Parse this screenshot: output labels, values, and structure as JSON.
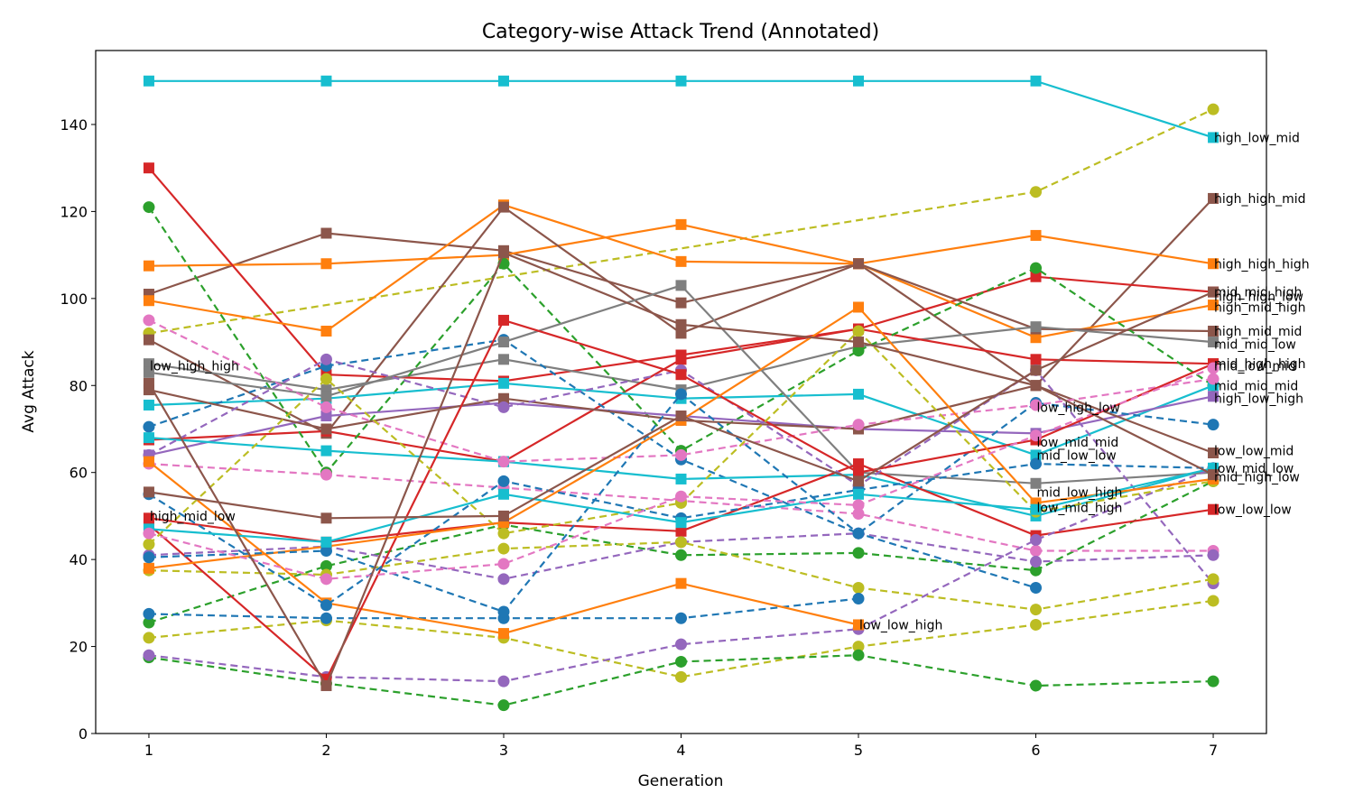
{
  "chart_data": {
    "type": "line",
    "title": "Category-wise Attack Trend (Annotated)",
    "xlabel": "Generation",
    "ylabel": "Avg Attack",
    "x": [
      1,
      2,
      3,
      4,
      5,
      6,
      7
    ],
    "xlim": [
      0.7,
      7.3
    ],
    "ylim": [
      0,
      157
    ],
    "xticks": [
      1,
      2,
      3,
      4,
      5,
      6,
      7
    ],
    "yticks": [
      0,
      20,
      40,
      60,
      80,
      100,
      120,
      140
    ],
    "grid": false,
    "series": [
      {
        "color": "#17becf",
        "marker": "s",
        "dash": false,
        "values": [
          150,
          150,
          150,
          150,
          150,
          150,
          137
        ]
      },
      {
        "color": "#bcbd22",
        "marker": "o",
        "dash": true,
        "values": [
          92,
          null,
          null,
          null,
          null,
          124.5,
          143.5
        ]
      },
      {
        "color": "#8c564b",
        "marker": "s",
        "dash": false,
        "values": [
          101,
          115,
          111,
          99,
          108,
          80,
          123
        ]
      },
      {
        "color": "#ff7f0e",
        "marker": "s",
        "dash": false,
        "values": [
          107.5,
          108,
          110,
          117,
          108,
          114.5,
          108
        ]
      },
      {
        "color": "#d62728",
        "marker": "s",
        "dash": false,
        "values": [
          130,
          82.5,
          81,
          87,
          93,
          105,
          101.5
        ]
      },
      {
        "color": "#ff7f0e",
        "marker": "s",
        "dash": false,
        "values": [
          99.5,
          92.5,
          121.5,
          108.5,
          108,
          91,
          98.5
        ]
      },
      {
        "color": "#8c564b",
        "marker": "s",
        "dash": false,
        "values": [
          90.5,
          69,
          121,
          92,
          108,
          93,
          92.5
        ]
      },
      {
        "color": "#7f7f7f",
        "marker": "s",
        "dash": false,
        "values": [
          85,
          79,
          86,
          79,
          89,
          93.5,
          90
        ]
      },
      {
        "color": "#d62728",
        "marker": "s",
        "dash": false,
        "values": [
          67.5,
          69.5,
          62.5,
          86,
          93,
          86,
          85
        ]
      },
      {
        "color": "#2ca02c",
        "marker": "o",
        "dash": true,
        "values": [
          121,
          60,
          108,
          65,
          88,
          107,
          80
        ]
      },
      {
        "color": "#17becf",
        "marker": "s",
        "dash": false,
        "values": [
          75.5,
          77,
          80.5,
          77,
          78,
          64,
          80
        ]
      },
      {
        "color": "#9467bd",
        "marker": "s",
        "dash": false,
        "values": [
          64,
          73,
          76,
          73,
          70,
          69,
          77.5
        ]
      },
      {
        "color": "#1f77b4",
        "marker": "o",
        "dash": true,
        "values": [
          70.5,
          84.5,
          90.5,
          63,
          46,
          76,
          71
        ]
      },
      {
        "color": "#8c564b",
        "marker": "s",
        "dash": false,
        "values": [
          79,
          70,
          77,
          72,
          70,
          80,
          64.5
        ]
      },
      {
        "color": "#17becf",
        "marker": "s",
        "dash": false,
        "values": [
          68,
          65,
          62.5,
          58.5,
          59.5,
          50,
          61
        ]
      },
      {
        "color": "#7f7f7f",
        "marker": "s",
        "dash": false,
        "values": [
          83,
          77.5,
          90,
          103,
          60,
          57.5,
          60
        ]
      },
      {
        "color": "#2ca02c",
        "marker": "o",
        "dash": true,
        "values": [
          25.5,
          38.5,
          48,
          41,
          41.5,
          37.5,
          58
        ]
      },
      {
        "color": "#d62728",
        "marker": "s",
        "dash": false,
        "values": [
          49.5,
          44,
          48.5,
          46.5,
          62,
          45.5,
          51.5
        ]
      },
      {
        "color": "#e377c2",
        "marker": "o",
        "dash": true,
        "values": [
          95,
          75,
          62.5,
          64,
          71,
          75.5,
          81.5
        ]
      },
      {
        "color": "#e377c2",
        "marker": "o",
        "dash": true,
        "values": [
          62,
          59.5,
          56.5,
          53.5,
          50.5,
          42,
          42
        ]
      },
      {
        "color": "#9467bd",
        "marker": "o",
        "dash": true,
        "values": [
          41,
          43,
          35.5,
          44,
          46,
          39.5,
          41
        ]
      },
      {
        "color": "#9467bd",
        "marker": "o",
        "dash": true,
        "values": [
          64,
          86,
          75,
          83.5,
          57,
          83.5,
          34.5
        ]
      },
      {
        "color": "#bcbd22",
        "marker": "o",
        "dash": true,
        "values": [
          37.5,
          36.5,
          42.5,
          44,
          33.5,
          28.5,
          35.5
        ]
      },
      {
        "color": "#bcbd22",
        "marker": "o",
        "dash": true,
        "values": [
          22,
          26,
          22,
          13,
          20,
          25,
          30.5
        ]
      },
      {
        "color": "#2ca02c",
        "marker": "o",
        "dash": true,
        "values": [
          17.5,
          11.5,
          6.5,
          16.5,
          18,
          11,
          12
        ]
      },
      {
        "color": "#9467bd",
        "marker": "o",
        "dash": true,
        "values": [
          18,
          13,
          12,
          20.5,
          24,
          44.5,
          61
        ]
      },
      {
        "color": "#1f77b4",
        "marker": "o",
        "dash": true,
        "values": [
          27.5,
          26.5,
          26.5,
          26.5,
          31,
          null,
          null
        ]
      },
      {
        "color": "#ff7f0e",
        "marker": "s",
        "dash": false,
        "values": [
          62.5,
          30,
          23,
          34.5,
          25,
          null,
          null
        ]
      },
      {
        "color": "#d62728",
        "marker": "s",
        "dash": false,
        "values": [
          48,
          12.5,
          95,
          82.5,
          60,
          67.5,
          85
        ]
      },
      {
        "color": "#1f77b4",
        "marker": "o",
        "dash": true,
        "values": [
          55,
          29.5,
          58,
          49.5,
          56,
          62,
          61
        ]
      },
      {
        "color": "#bcbd22",
        "marker": "o",
        "dash": true,
        "values": [
          43.5,
          81.5,
          46,
          53,
          92.5,
          51,
          58
        ]
      },
      {
        "color": "#ff7f0e",
        "marker": "s",
        "dash": false,
        "values": [
          38,
          43,
          48.5,
          72,
          98,
          53,
          58.5
        ]
      },
      {
        "color": "#1f77b4",
        "marker": "o",
        "dash": true,
        "values": [
          40.5,
          42,
          28,
          78,
          46,
          33.5,
          null
        ]
      },
      {
        "color": "#17becf",
        "marker": "s",
        "dash": false,
        "values": [
          47,
          44,
          55,
          48.5,
          55,
          51.5,
          61
        ]
      },
      {
        "color": "#8c564b",
        "marker": "s",
        "dash": false,
        "values": [
          55.5,
          49.5,
          50,
          73,
          58,
          83.5,
          101.5
        ]
      },
      {
        "color": "#e377c2",
        "marker": "o",
        "dash": true,
        "values": [
          46,
          35.5,
          39,
          54.5,
          52.5,
          68.5,
          84
        ]
      },
      {
        "color": "#8c564b",
        "marker": "s",
        "dash": false,
        "values": [
          80.5,
          11,
          110.5,
          94,
          90,
          80,
          59.5
        ]
      }
    ],
    "annotations": [
      {
        "text": "high_low_mid",
        "x": 7,
        "y": 137
      },
      {
        "text": "high_high_mid",
        "x": 7,
        "y": 123
      },
      {
        "text": "high_high_high",
        "x": 7,
        "y": 108
      },
      {
        "text": "mid_mid_high",
        "x": 7,
        "y": 101.5
      },
      {
        "text": "high_high_low",
        "x": 7,
        "y": 100.5
      },
      {
        "text": "high_mid_high",
        "x": 7,
        "y": 98
      },
      {
        "text": "high_mid_mid",
        "x": 7,
        "y": 92.5
      },
      {
        "text": "mid_mid_low",
        "x": 7,
        "y": 89.5
      },
      {
        "text": "mid_high_high",
        "x": 7,
        "y": 85
      },
      {
        "text": "mid_low_mid",
        "x": 7,
        "y": 84.5
      },
      {
        "text": "mid_mid_mid",
        "x": 7,
        "y": 80
      },
      {
        "text": "high_low_high",
        "x": 7,
        "y": 77
      },
      {
        "text": "low_low_mid",
        "x": 7,
        "y": 65
      },
      {
        "text": "low_mid_low",
        "x": 7,
        "y": 61
      },
      {
        "text": "mid_high_low",
        "x": 7,
        "y": 59
      },
      {
        "text": "low_low_low",
        "x": 7,
        "y": 51.5
      },
      {
        "text": "low_high_low",
        "x": 6,
        "y": 75
      },
      {
        "text": "low_mid_mid",
        "x": 6,
        "y": 67
      },
      {
        "text": "mid_low_low",
        "x": 6,
        "y": 64
      },
      {
        "text": "mid_low_high",
        "x": 6,
        "y": 55.5
      },
      {
        "text": "low_mid_high",
        "x": 6,
        "y": 52
      },
      {
        "text": "low_low_high",
        "x": 5,
        "y": 25
      },
      {
        "text": "low_high_high",
        "x": 1,
        "y": 84.5
      },
      {
        "text": "high_mid_low",
        "x": 1,
        "y": 50
      }
    ]
  }
}
